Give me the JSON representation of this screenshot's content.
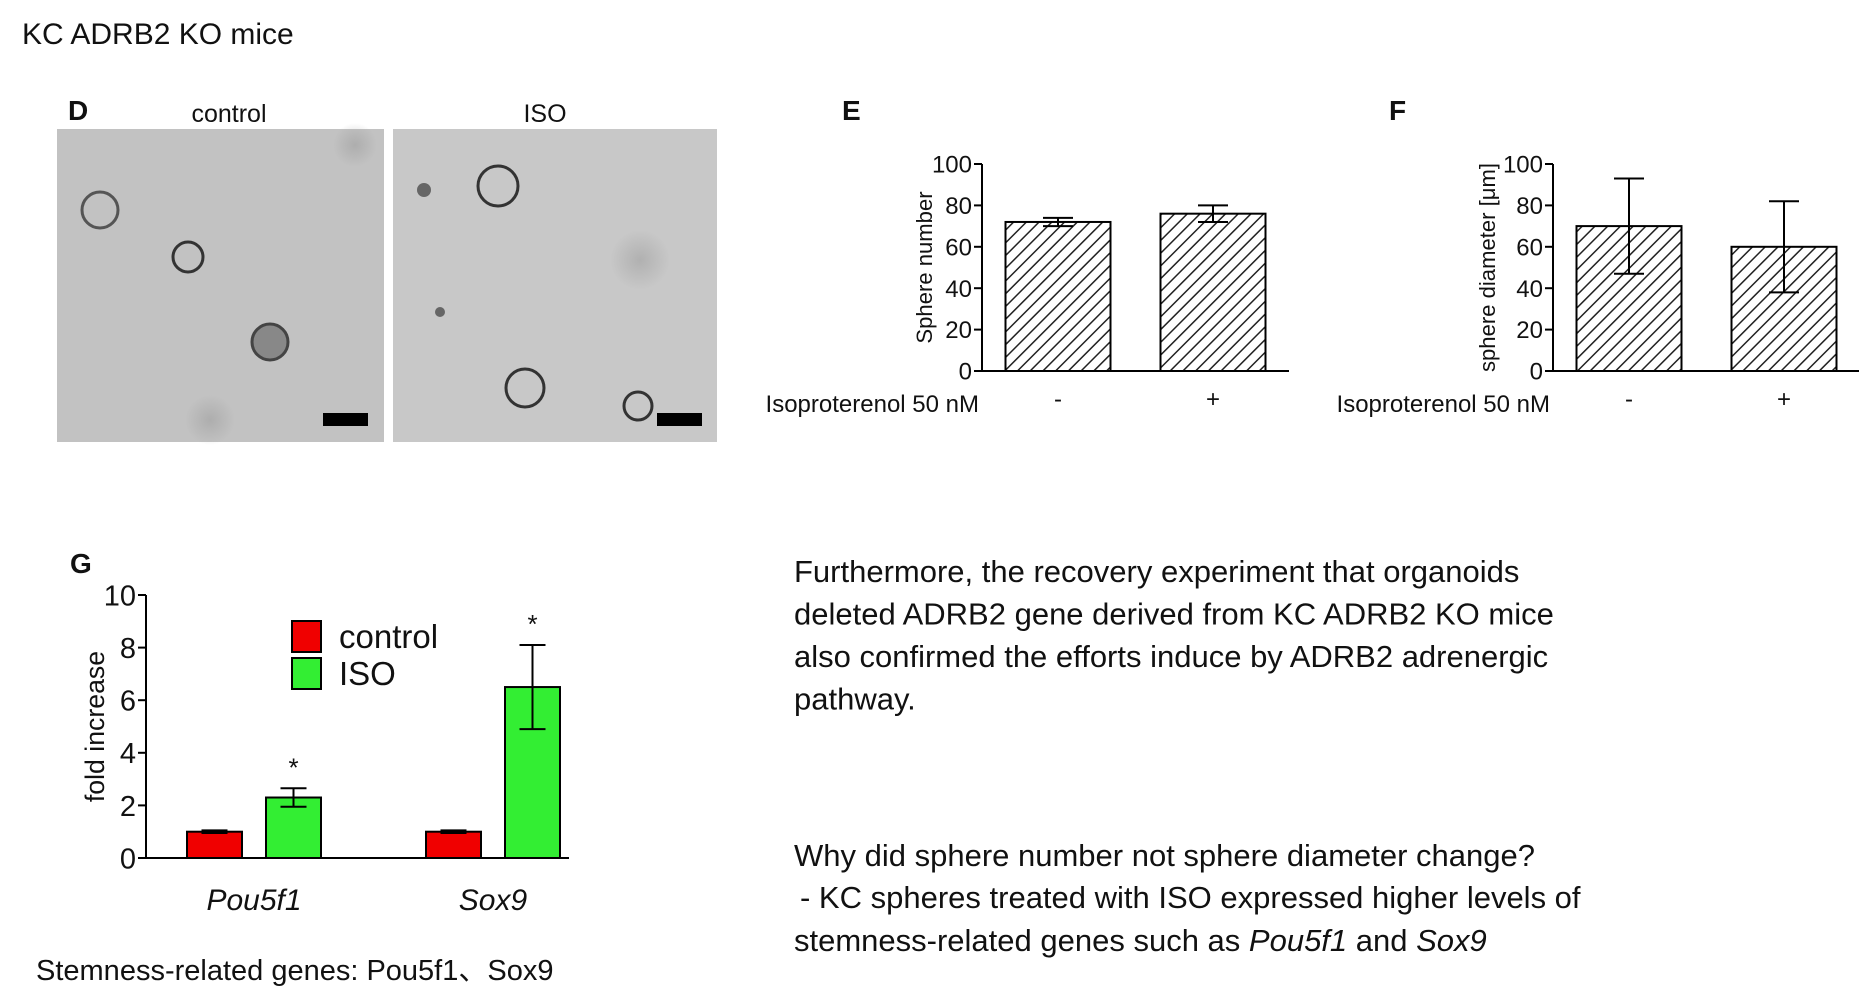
{
  "title": "KC ADRB2 KO mice",
  "panel_d": {
    "label": "D",
    "images": [
      "control",
      "ISO"
    ]
  },
  "chart_data": [
    {
      "type": "bar",
      "panel": "E",
      "ylabel": "Sphere number",
      "xlabel": "Isoproterenol 50 nM",
      "categories": [
        "-",
        "+"
      ],
      "values": [
        72,
        76
      ],
      "errors": [
        2,
        4
      ],
      "pattern": "hatch",
      "ylim": [
        0,
        100
      ],
      "yticks": [
        0,
        20,
        40,
        60,
        80,
        100
      ]
    },
    {
      "type": "bar",
      "panel": "F",
      "ylabel": "sphere diameter [μm]",
      "xlabel": "Isoproterenol 50 nM",
      "categories": [
        "-",
        "+"
      ],
      "values": [
        70,
        60
      ],
      "errors": [
        23,
        22
      ],
      "pattern": "hatch",
      "ylim": [
        0,
        100
      ],
      "yticks": [
        0,
        20,
        40,
        60,
        80,
        100
      ]
    },
    {
      "type": "grouped-bar",
      "panel": "G",
      "ylabel": "fold increase",
      "categories": [
        "Pou5f1",
        "Sox9"
      ],
      "series": [
        {
          "name": "control",
          "color": "#f00000",
          "values": [
            1,
            1
          ],
          "errors": [
            0.05,
            0.05
          ]
        },
        {
          "name": "ISO",
          "color": "#33ee33",
          "values": [
            2.3,
            6.5
          ],
          "errors": [
            0.35,
            1.6
          ],
          "annotations": [
            "*",
            "*"
          ]
        }
      ],
      "ylim": [
        0,
        10
      ],
      "yticks": [
        0,
        2,
        4,
        6,
        8,
        10
      ]
    }
  ],
  "caption": "Stemness-related genes: Pou5f1、Sox9",
  "paragraph": [
    "Furthermore, the recovery experiment that organoids",
    "deleted ADRB2 gene derived from KC ADRB2 KO mice",
    "also confirmed the efforts induce by ADRB2 adrenergic",
    "pathway."
  ],
  "question": "Why did sphere number not sphere diameter change?",
  "answer": [
    [
      {
        "text": "- KC spheres treated with ISO expressed higher levels of"
      }
    ],
    [
      {
        "text": "stemness-related genes such as "
      },
      {
        "text": "Pou5f1",
        "italic": true
      },
      {
        "text": " and "
      },
      {
        "text": "Sox9",
        "italic": true
      }
    ]
  ]
}
